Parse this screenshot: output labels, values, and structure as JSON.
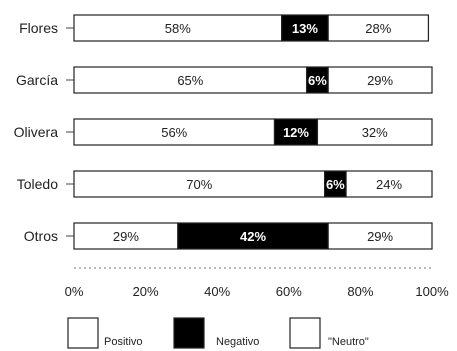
{
  "chart_data": {
    "type": "bar",
    "orientation": "horizontal",
    "stacked": true,
    "categories": [
      "Flores",
      "García",
      "Olivera",
      "Toledo",
      "Otros"
    ],
    "series": [
      {
        "name": "Positivo",
        "values": [
          58,
          65,
          56,
          70,
          29
        ],
        "color": "#ffffff"
      },
      {
        "name": "Negativo",
        "values": [
          13,
          6,
          12,
          6,
          42
        ],
        "color": "#000000"
      },
      {
        "name": "\"Neutro\"",
        "values": [
          28,
          29,
          32,
          24,
          29
        ],
        "color": "#ffffff"
      }
    ],
    "data_labels": [
      [
        "58%",
        "13%",
        "28%"
      ],
      [
        "65%",
        "6%",
        "29%"
      ],
      [
        "56%",
        "12%",
        "32%"
      ],
      [
        "70%",
        "6%",
        "24%"
      ],
      [
        "29%",
        "42%",
        "29%"
      ]
    ],
    "x_ticks": [
      "0%",
      "20%",
      "40%",
      "60%",
      "80%",
      "100%"
    ],
    "xlim": [
      0,
      100
    ],
    "legend_position": "bottom",
    "grid": false
  }
}
